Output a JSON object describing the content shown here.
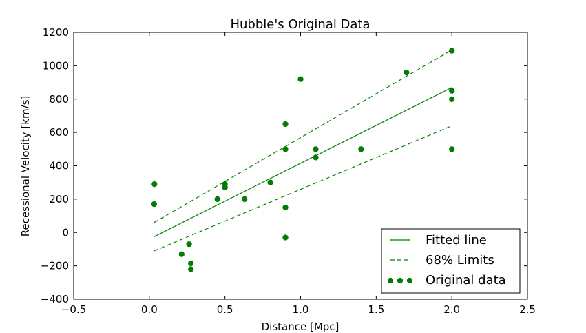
{
  "chart_data": {
    "type": "scatter",
    "title": "Hubble's Original Data",
    "xlabel": "Distance [Mpc]",
    "ylabel": "Recessional Velocity [km/s]",
    "xlim": [
      -0.5,
      2.5
    ],
    "ylim": [
      -400,
      1200
    ],
    "xticks": [
      -0.5,
      0.0,
      0.5,
      1.0,
      1.5,
      2.0,
      2.5
    ],
    "xtick_labels": [
      "−0.5",
      "0.0",
      "0.5",
      "1.0",
      "1.5",
      "2.0",
      "2.5"
    ],
    "yticks": [
      -400,
      -200,
      0,
      200,
      400,
      600,
      800,
      1000,
      1200
    ],
    "ytick_labels": [
      "−400",
      "−200",
      "0",
      "200",
      "400",
      "600",
      "800",
      "1000",
      "1200"
    ],
    "grid": false,
    "legend_position": "lower-right",
    "series": [
      {
        "name": "Fitted line",
        "kind": "line",
        "style": "solid",
        "color": "#008000",
        "x": [
          0.032,
          2.0
        ],
        "y": [
          -25,
          870
        ]
      },
      {
        "name": "68% Limits",
        "kind": "line",
        "style": "dashed",
        "color": "#008000",
        "x": [
          0.032,
          2.0
        ],
        "y": [
          60,
          1095
        ]
      },
      {
        "name": "68% Limits",
        "kind": "line",
        "style": "dashed",
        "color": "#008000",
        "x": [
          0.032,
          2.0
        ],
        "y": [
          -110,
          640
        ]
      },
      {
        "name": "Original data",
        "kind": "scatter",
        "color": "#008000",
        "x": [
          0.032,
          0.034,
          0.214,
          0.263,
          0.275,
          0.275,
          0.45,
          0.5,
          0.5,
          0.63,
          0.8,
          0.9,
          0.9,
          0.9,
          0.9,
          1.0,
          1.1,
          1.1,
          1.4,
          1.7,
          2.0,
          2.0,
          2.0,
          2.0
        ],
        "y": [
          170,
          290,
          -130,
          -70,
          -185,
          -220,
          200,
          290,
          270,
          200,
          300,
          -30,
          650,
          150,
          500,
          920,
          450,
          500,
          500,
          960,
          500,
          850,
          800,
          1090
        ]
      }
    ],
    "legend": [
      "Fitted line",
      "68% Limits",
      "Original data"
    ]
  }
}
